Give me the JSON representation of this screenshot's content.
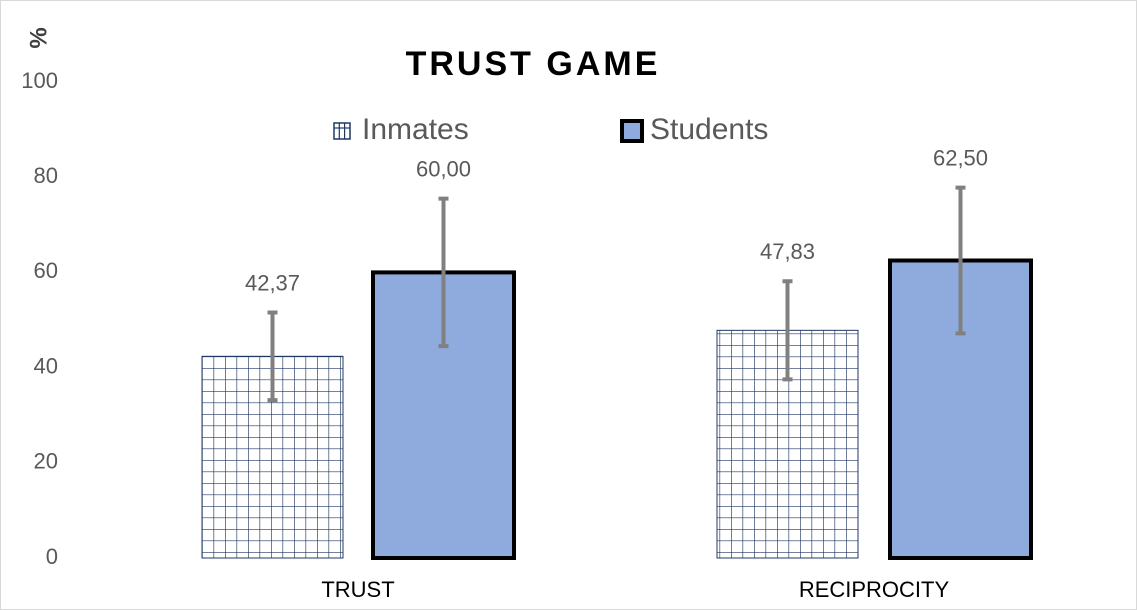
{
  "chart_data": {
    "type": "bar",
    "title": "TRUST GAME",
    "y_label": "%",
    "categories": [
      "TRUST",
      "RECIPROCITY"
    ],
    "series": [
      {
        "name": "Inmates",
        "color": "#1f3864",
        "pattern": "grid",
        "values": [
          42.37,
          47.83
        ],
        "value_labels": [
          "42,37",
          "47,83"
        ],
        "errors": [
          9.2,
          10.3
        ]
      },
      {
        "name": "Students",
        "color": "#8faadc",
        "values": [
          60.0,
          62.5
        ],
        "value_labels": [
          "60,00",
          "62,50"
        ],
        "errors": [
          15.5,
          15.3
        ]
      }
    ],
    "ylim": [
      0,
      100
    ],
    "yticks": [
      0,
      20,
      40,
      60,
      80,
      100
    ],
    "grid": false,
    "legend": "top"
  }
}
